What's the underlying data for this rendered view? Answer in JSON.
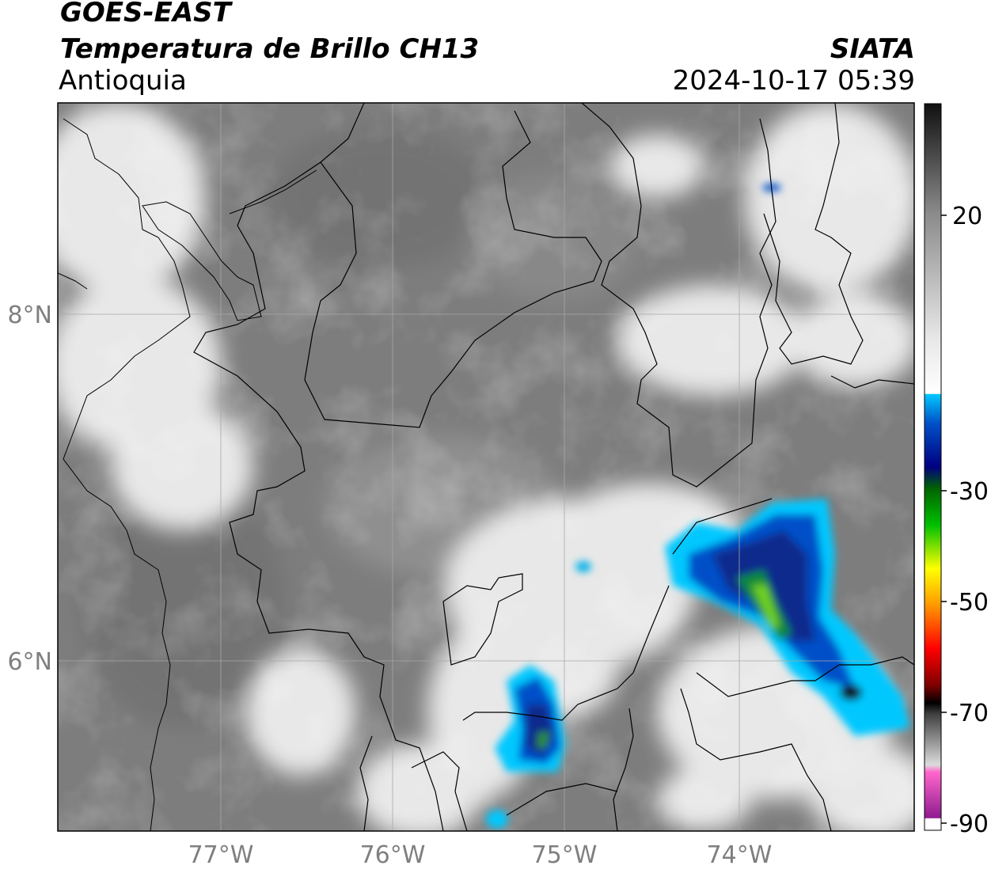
{
  "header": {
    "satellite": "GOES-EAST",
    "product": "Temperatura de Brillo CH13",
    "region": "Antioquia",
    "brand": "SIATA",
    "timestamp": "2024-10-17 05:39"
  },
  "axes": {
    "lat_labels": [
      "8°N",
      "6°N"
    ],
    "lon_labels": [
      "77°W",
      "76°W",
      "75°W",
      "74°W"
    ]
  },
  "colorbar": {
    "tick_labels": [
      "20",
      "-30",
      "-50",
      "-70",
      "-90"
    ],
    "stops": [
      "#141414",
      "#7f7f7f",
      "#f0f0f0",
      "#00c8ff",
      "#002a8c",
      "#00a000",
      "#ffff00",
      "#ff0000",
      "#000000",
      "#dcdcdc",
      "#ff66cc",
      "#8e1c8e"
    ]
  },
  "colors": {
    "land_gray": "#7d7d7d",
    "cloud_white": "#ececec",
    "cold_top_blue": "#0a3a9a",
    "cold_core_green": "#3fae2a",
    "border_line": "#000000"
  }
}
